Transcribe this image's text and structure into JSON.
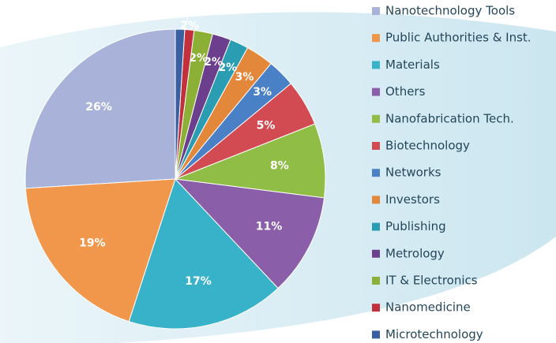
{
  "chart_data": {
    "type": "pie",
    "categories": [
      "Nanotechnology Tools",
      "Public Authorities & Inst.",
      "Materials",
      "Others",
      "Nanofabrication Tech.",
      "Biotechnology",
      "Networks",
      "Investors",
      "Publishing",
      "Metrology",
      "IT & Electronics",
      "Nanomedicine",
      "Microtechnology"
    ],
    "values": [
      26,
      19,
      17,
      11,
      8,
      5,
      3,
      3,
      2,
      2,
      2,
      1,
      1
    ],
    "value_labels": [
      "26%",
      "19%",
      "17%",
      "11%",
      "8%",
      "5%",
      "3%",
      "3%",
      "2%",
      "2%",
      "2%",
      null,
      null
    ],
    "colors": [
      "#a9b3d9",
      "#f0974b",
      "#37b2c9",
      "#8a5ea8",
      "#8fbd45",
      "#d24b52",
      "#4a80c6",
      "#e3873a",
      "#2a9db2",
      "#6b3f8d",
      "#8caf35",
      "#c2303b",
      "#3b5fa3"
    ],
    "annotations": [
      {
        "text": "2%"
      }
    ],
    "legend": "right"
  }
}
